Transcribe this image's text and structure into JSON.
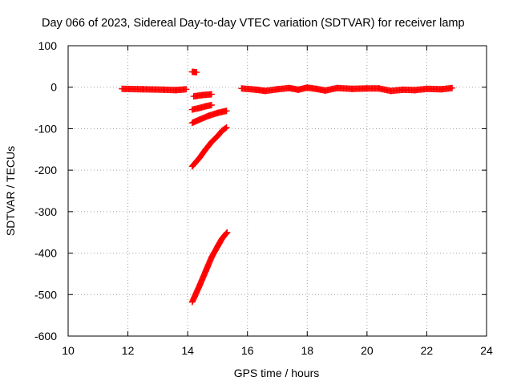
{
  "chart_data": {
    "type": "scatter",
    "title": "Day 066 of 2023, Sidereal Day-to-day VTEC variation (SDTVAR) for receiver lamp",
    "xlabel": "GPS time / hours",
    "ylabel": "SDTVAR / TECUs",
    "xlim": [
      10,
      24
    ],
    "ylim": [
      -600,
      100
    ],
    "xticks": [
      "10",
      "12",
      "14",
      "16",
      "18",
      "20",
      "22",
      "24"
    ],
    "yticks": [
      "100",
      "0",
      "-100",
      "-200",
      "-300",
      "-400",
      "-500",
      "-600"
    ],
    "grid": true,
    "marker": "+",
    "color": "#ff0000",
    "segments": [
      {
        "name": "",
        "points": [
          [
            11.8,
            -4
          ],
          [
            12.5,
            -5
          ],
          [
            13.2,
            -6
          ],
          [
            13.6,
            -7
          ],
          [
            13.95,
            -5
          ]
        ]
      },
      {
        "name": "",
        "points": [
          [
            14.15,
            37
          ],
          [
            14.3,
            36
          ]
        ]
      },
      {
        "name": "",
        "points": [
          [
            14.2,
            -22
          ],
          [
            14.5,
            -19
          ],
          [
            14.8,
            -17
          ]
        ]
      },
      {
        "name": "",
        "points": [
          [
            14.15,
            -54
          ],
          [
            14.4,
            -50
          ],
          [
            14.6,
            -46
          ],
          [
            14.8,
            -43
          ]
        ]
      },
      {
        "name": "",
        "points": [
          [
            14.15,
            -86
          ],
          [
            14.4,
            -78
          ],
          [
            14.7,
            -69
          ],
          [
            15.0,
            -62
          ],
          [
            15.3,
            -57
          ]
        ]
      },
      {
        "name": "",
        "points": [
          [
            14.15,
            -191
          ],
          [
            14.4,
            -170
          ],
          [
            14.6,
            -150
          ],
          [
            14.8,
            -132
          ],
          [
            15.0,
            -118
          ],
          [
            15.15,
            -105
          ],
          [
            15.3,
            -97
          ]
        ]
      },
      {
        "name": "",
        "points": [
          [
            14.15,
            -518
          ],
          [
            14.4,
            -478
          ],
          [
            14.6,
            -444
          ],
          [
            14.8,
            -410
          ],
          [
            15.0,
            -384
          ],
          [
            15.15,
            -365
          ],
          [
            15.32,
            -350
          ]
        ]
      },
      {
        "name": "",
        "points": [
          [
            15.8,
            -3
          ],
          [
            16.3,
            -6
          ],
          [
            16.6,
            -9
          ],
          [
            17.0,
            -5
          ],
          [
            17.4,
            -2
          ],
          [
            17.7,
            -6
          ],
          [
            18.0,
            -1
          ],
          [
            18.3,
            -4
          ],
          [
            18.6,
            -8
          ],
          [
            19.0,
            -2
          ],
          [
            19.5,
            -4
          ],
          [
            20.0,
            -3
          ],
          [
            20.4,
            -3
          ],
          [
            20.8,
            -9
          ],
          [
            21.2,
            -6
          ],
          [
            21.6,
            -7
          ],
          [
            22.0,
            -4
          ],
          [
            22.5,
            -5
          ],
          [
            22.85,
            -2
          ]
        ]
      }
    ]
  }
}
